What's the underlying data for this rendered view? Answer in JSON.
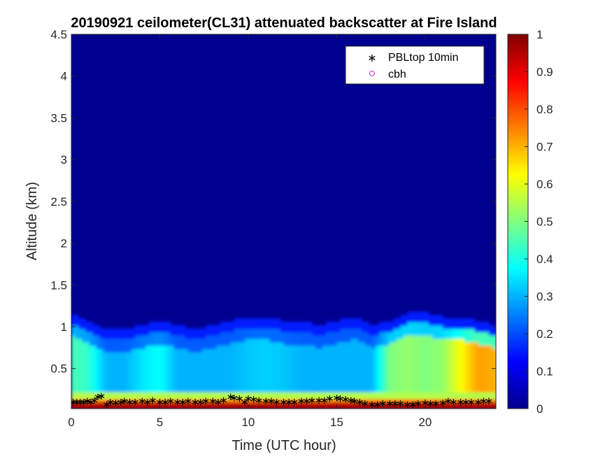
{
  "chart_data": {
    "type": "heatmap",
    "title": "20190921 ceilometer(CL31) attenuated backscatter at Fire Island",
    "xlabel": "Time (UTC hour)",
    "ylabel": "Altitude (km)",
    "xlim": [
      0,
      24
    ],
    "ylim": [
      0.02,
      4.5
    ],
    "clim": [
      0,
      1
    ],
    "colormap": "jet",
    "xticks": [
      0,
      5,
      10,
      15,
      20
    ],
    "yticks": [
      0.5,
      1,
      1.5,
      2,
      2.5,
      3,
      3.5,
      4,
      4.5
    ],
    "cticks": [
      0,
      0.1,
      0.2,
      0.3,
      0.4,
      0.5,
      0.6,
      0.7,
      0.8,
      0.9,
      1
    ],
    "legend": {
      "position": "top-right",
      "entries": [
        {
          "label": "PBLtop 10min",
          "marker": "*",
          "color": "#000000"
        },
        {
          "label": "cbh",
          "marker": "o",
          "color": "#cc33cc"
        }
      ]
    },
    "layer_profile": {
      "hours": [
        0,
        1,
        2,
        3,
        4,
        5,
        6,
        7,
        8,
        9,
        10,
        11,
        12,
        13,
        14,
        15,
        16,
        17,
        18,
        19,
        20,
        21,
        22,
        23,
        24
      ],
      "top_km": [
        1.05,
        0.95,
        0.85,
        0.85,
        0.9,
        0.95,
        0.9,
        0.85,
        0.9,
        0.95,
        1.0,
        1.0,
        0.95,
        0.95,
        0.9,
        0.95,
        1.0,
        0.9,
        0.95,
        1.05,
        1.05,
        1.0,
        1.0,
        0.95,
        0.9
      ],
      "mid_value": [
        0.45,
        0.42,
        0.3,
        0.3,
        0.35,
        0.38,
        0.3,
        0.3,
        0.3,
        0.3,
        0.32,
        0.33,
        0.32,
        0.3,
        0.3,
        0.3,
        0.3,
        0.3,
        0.5,
        0.52,
        0.5,
        0.52,
        0.62,
        0.72,
        0.7
      ]
    },
    "series": [
      {
        "name": "PBLtop 10min",
        "x": [
          0.1,
          0.3,
          0.5,
          0.7,
          0.9,
          1.1,
          1.3,
          1.5,
          1.7,
          2.0,
          2.2,
          2.5,
          2.8,
          3.0,
          3.3,
          3.6,
          4.0,
          4.3,
          4.6,
          5.0,
          5.3,
          5.6,
          6.0,
          6.3,
          6.6,
          7.0,
          7.3,
          7.6,
          8.0,
          8.3,
          8.6,
          9.0,
          9.2,
          9.5,
          9.8,
          10.0,
          10.3,
          10.6,
          11.0,
          11.3,
          11.6,
          12.0,
          12.3,
          12.6,
          13.0,
          13.3,
          13.6,
          14.0,
          14.3,
          14.6,
          15.0,
          15.2,
          15.5,
          15.8,
          16.0,
          16.3,
          16.6,
          17.0,
          17.3,
          17.6,
          18.0,
          18.3,
          18.6,
          19.0,
          19.3,
          19.6,
          20.0,
          20.3,
          20.6,
          21.0,
          21.3,
          21.6,
          22.0,
          22.3,
          22.6,
          23.0,
          23.3,
          23.6
        ],
        "y": [
          0.11,
          0.11,
          0.11,
          0.11,
          0.12,
          0.11,
          0.13,
          0.17,
          0.18,
          0.08,
          0.11,
          0.1,
          0.11,
          0.12,
          0.11,
          0.11,
          0.12,
          0.11,
          0.13,
          0.11,
          0.11,
          0.12,
          0.11,
          0.11,
          0.12,
          0.11,
          0.11,
          0.12,
          0.12,
          0.11,
          0.13,
          0.17,
          0.16,
          0.15,
          0.11,
          0.15,
          0.14,
          0.13,
          0.12,
          0.12,
          0.11,
          0.11,
          0.11,
          0.11,
          0.12,
          0.12,
          0.13,
          0.13,
          0.13,
          0.15,
          0.16,
          0.15,
          0.14,
          0.13,
          0.12,
          0.11,
          0.09,
          0.08,
          0.08,
          0.09,
          0.09,
          0.09,
          0.09,
          0.08,
          0.08,
          0.09,
          0.1,
          0.09,
          0.09,
          0.1,
          0.12,
          0.11,
          0.11,
          0.11,
          0.11,
          0.11,
          0.12,
          0.12
        ]
      },
      {
        "name": "cbh",
        "x": [],
        "y": []
      }
    ]
  }
}
